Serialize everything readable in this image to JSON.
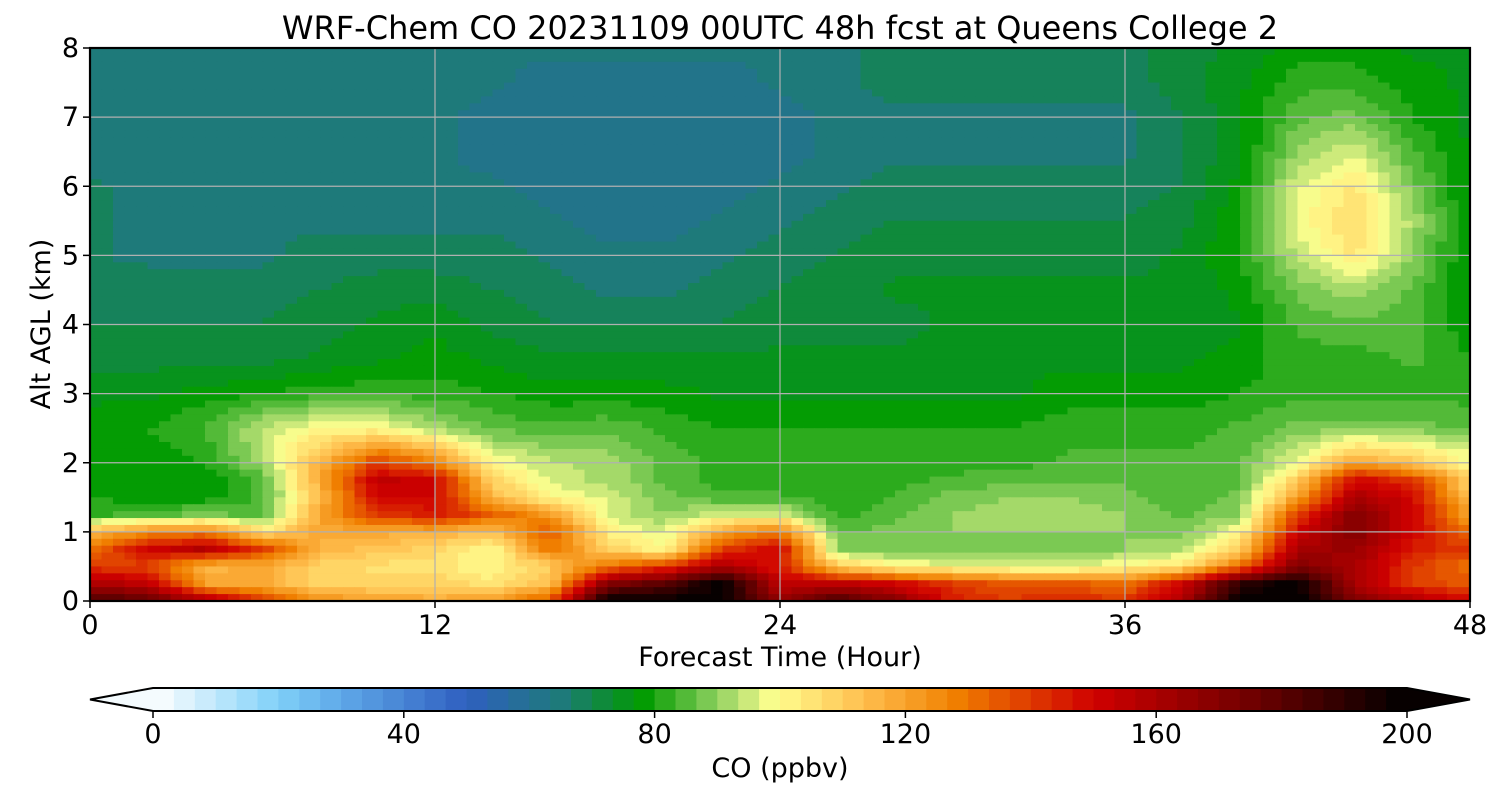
{
  "chart_data": {
    "type": "heatmap",
    "title": "WRF-Chem CO  20231109 00UTC 48h fcst at Queens College 2",
    "xlabel": "Forecast Time (Hour)",
    "ylabel": "Alt AGL (km)",
    "xlim": [
      0,
      48
    ],
    "ylim": [
      0,
      8
    ],
    "x_ticks": [
      0,
      12,
      24,
      36,
      48
    ],
    "y_ticks": [
      0,
      1,
      2,
      3,
      4,
      5,
      6,
      7,
      8
    ],
    "grid": true,
    "colorbar": {
      "label": "CO  (ppbv)",
      "range": [
        0,
        200
      ],
      "ticks": [
        0,
        40,
        80,
        120,
        160,
        200
      ],
      "extend": "both",
      "stops": [
        {
          "value": 0,
          "color": "#ffffff"
        },
        {
          "value": 20,
          "color": "#7fd0f8"
        },
        {
          "value": 30,
          "color": "#5fa8e8"
        },
        {
          "value": 50,
          "color": "#2f5fc0"
        },
        {
          "value": 65,
          "color": "#1e7a7a"
        },
        {
          "value": 78,
          "color": "#009a00"
        },
        {
          "value": 90,
          "color": "#8fd060"
        },
        {
          "value": 99,
          "color": "#ffff90"
        },
        {
          "value": 113,
          "color": "#ffc050"
        },
        {
          "value": 128,
          "color": "#f08000"
        },
        {
          "value": 150,
          "color": "#d00000"
        },
        {
          "value": 175,
          "color": "#700000"
        },
        {
          "value": 200,
          "color": "#000000"
        }
      ]
    },
    "hours": [
      0,
      2,
      4,
      6,
      8,
      10,
      12,
      14,
      16,
      18,
      20,
      22,
      24,
      26,
      28,
      30,
      32,
      34,
      36,
      38,
      40,
      42,
      44,
      46,
      48
    ],
    "altitudes_km": [
      0,
      0.25,
      0.5,
      0.75,
      1,
      1.25,
      1.5,
      1.75,
      2,
      2.5,
      3,
      3.5,
      4,
      4.5,
      5,
      5.5,
      6,
      6.5,
      7,
      7.5,
      8
    ],
    "values_ppbv": [
      [
        185,
        178,
        160,
        140,
        125,
        120,
        118,
        122,
        135,
        200,
        200,
        200,
        165,
        185,
        170,
        145,
        140,
        145,
        140,
        160,
        200,
        200,
        170,
        160,
        150
      ],
      [
        160,
        155,
        120,
        118,
        108,
        108,
        110,
        104,
        114,
        170,
        180,
        200,
        155,
        155,
        150,
        140,
        135,
        135,
        130,
        150,
        190,
        200,
        160,
        140,
        135
      ],
      [
        140,
        138,
        115,
        118,
        108,
        106,
        104,
        100,
        110,
        130,
        140,
        160,
        145,
        110,
        100,
        98,
        95,
        95,
        100,
        105,
        130,
        170,
        160,
        140,
        130
      ],
      [
        130,
        150,
        158,
        140,
        116,
        112,
        108,
        100,
        130,
        110,
        100,
        140,
        150,
        90,
        88,
        88,
        88,
        88,
        90,
        92,
        110,
        160,
        165,
        145,
        140
      ],
      [
        115,
        125,
        128,
        106,
        118,
        118,
        118,
        112,
        136,
        102,
        96,
        120,
        130,
        86,
        88,
        90,
        90,
        90,
        90,
        88,
        100,
        150,
        170,
        150,
        130
      ],
      [
        82,
        85,
        88,
        84,
        120,
        140,
        146,
        134,
        122,
        96,
        90,
        96,
        96,
        82,
        86,
        90,
        92,
        92,
        90,
        86,
        90,
        140,
        170,
        150,
        120
      ],
      [
        80,
        78,
        78,
        84,
        114,
        150,
        150,
        116,
        100,
        96,
        88,
        84,
        84,
        80,
        84,
        88,
        90,
        90,
        88,
        84,
        88,
        120,
        160,
        150,
        112
      ],
      [
        78,
        78,
        78,
        84,
        118,
        155,
        150,
        108,
        96,
        92,
        86,
        82,
        82,
        80,
        82,
        84,
        86,
        86,
        86,
        84,
        86,
        110,
        150,
        140,
        108
      ],
      [
        78,
        78,
        80,
        92,
        116,
        140,
        128,
        100,
        94,
        92,
        86,
        82,
        80,
        80,
        80,
        82,
        82,
        84,
        84,
        84,
        86,
        98,
        120,
        112,
        100
      ],
      [
        78,
        80,
        84,
        94,
        100,
        100,
        92,
        86,
        84,
        86,
        82,
        80,
        80,
        80,
        80,
        80,
        80,
        82,
        82,
        82,
        84,
        88,
        88,
        88,
        86
      ],
      [
        76,
        76,
        78,
        80,
        82,
        82,
        82,
        80,
        78,
        78,
        78,
        76,
        76,
        76,
        76,
        76,
        76,
        78,
        78,
        78,
        80,
        82,
        82,
        82,
        82
      ],
      [
        72,
        72,
        72,
        72,
        74,
        76,
        78,
        76,
        74,
        74,
        74,
        74,
        74,
        74,
        74,
        76,
        76,
        76,
        76,
        76,
        78,
        82,
        82,
        84,
        80
      ],
      [
        70,
        70,
        70,
        70,
        72,
        74,
        76,
        72,
        70,
        70,
        70,
        70,
        72,
        72,
        72,
        74,
        74,
        74,
        74,
        74,
        76,
        84,
        86,
        84,
        78
      ],
      [
        68,
        68,
        68,
        68,
        70,
        72,
        72,
        70,
        68,
        66,
        66,
        68,
        70,
        72,
        74,
        74,
        74,
        74,
        74,
        74,
        78,
        88,
        92,
        86,
        76
      ],
      [
        67,
        66,
        66,
        66,
        68,
        68,
        68,
        68,
        66,
        64,
        64,
        66,
        68,
        70,
        72,
        72,
        72,
        72,
        72,
        74,
        80,
        94,
        104,
        90,
        76
      ],
      [
        67,
        66,
        66,
        66,
        66,
        66,
        66,
        66,
        64,
        62,
        62,
        64,
        66,
        68,
        70,
        70,
        70,
        70,
        70,
        72,
        80,
        98,
        108,
        92,
        76
      ],
      [
        67,
        66,
        66,
        64,
        64,
        64,
        64,
        64,
        62,
        60,
        60,
        62,
        64,
        66,
        68,
        68,
        68,
        68,
        68,
        70,
        78,
        96,
        104,
        88,
        76
      ],
      [
        66,
        66,
        64,
        64,
        64,
        64,
        64,
        62,
        60,
        60,
        60,
        62,
        62,
        64,
        66,
        66,
        66,
        66,
        66,
        70,
        76,
        90,
        96,
        84,
        76
      ],
      [
        66,
        66,
        64,
        64,
        64,
        64,
        64,
        62,
        60,
        60,
        60,
        60,
        62,
        64,
        66,
        66,
        66,
        66,
        66,
        70,
        76,
        86,
        88,
        80,
        76
      ],
      [
        66,
        66,
        66,
        66,
        66,
        66,
        66,
        64,
        62,
        62,
        62,
        62,
        64,
        66,
        68,
        68,
        68,
        68,
        68,
        72,
        76,
        82,
        82,
        78,
        76
      ],
      [
        66,
        66,
        66,
        66,
        66,
        66,
        66,
        64,
        64,
        64,
        64,
        64,
        64,
        66,
        68,
        68,
        68,
        68,
        68,
        72,
        74,
        78,
        78,
        76,
        76
      ]
    ]
  }
}
